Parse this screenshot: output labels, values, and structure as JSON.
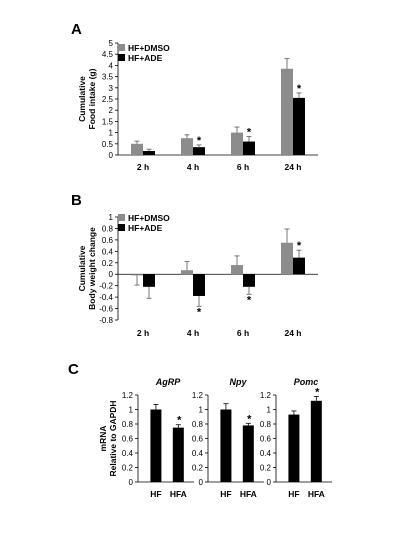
{
  "chart_data": [
    {
      "panel": "A",
      "type": "bar",
      "categories": [
        "2 h",
        "4 h",
        "6 h",
        "24 h"
      ],
      "series": [
        {
          "name": "HF+DMSO",
          "values": [
            0.5,
            0.75,
            1.0,
            3.85
          ],
          "errors": [
            0.12,
            0.15,
            0.25,
            0.45
          ],
          "sig": [
            false,
            false,
            false,
            false
          ]
        },
        {
          "name": "HF+ADE",
          "values": [
            0.18,
            0.35,
            0.6,
            2.55
          ],
          "errors": [
            0.08,
            0.1,
            0.22,
            0.22
          ],
          "sig": [
            false,
            true,
            true,
            true
          ]
        }
      ],
      "ylabel": [
        "Cumulative",
        "Food intake (g)"
      ],
      "ylim": [
        0,
        5
      ],
      "yticks": [
        "0",
        "0.5",
        "1",
        "1.5",
        "2",
        "2.5",
        "3",
        "3.5",
        "4",
        "4.5",
        "5"
      ],
      "legend": "top-left",
      "grid": false
    },
    {
      "panel": "B",
      "type": "bar",
      "categories": [
        "2 h",
        "4 h",
        "6 h",
        "24 h"
      ],
      "series": [
        {
          "name": "HF+DMSO",
          "values": [
            -0.02,
            0.07,
            0.16,
            0.55
          ],
          "errors": [
            0.17,
            0.15,
            0.16,
            0.24
          ],
          "sig": [
            false,
            false,
            false,
            false
          ]
        },
        {
          "name": "HF+ADE",
          "values": [
            -0.22,
            -0.38,
            -0.22,
            0.29
          ],
          "errors": [
            0.2,
            0.18,
            0.13,
            0.13
          ],
          "sig": [
            false,
            true,
            true,
            true
          ]
        }
      ],
      "ylabel": [
        "Cumulative",
        "Body weight change"
      ],
      "ylim": [
        -0.8,
        1
      ],
      "yticks": [
        "-0.8",
        "-0.6",
        "-0.4",
        "-0.2",
        "0",
        "0.2",
        "0.4",
        "0.6",
        "0.8",
        "1"
      ],
      "legend": "top-left",
      "grid": false
    },
    {
      "panel": "C",
      "type": "bar",
      "ylabel": [
        "mRNA",
        "Relative to GAPDH"
      ],
      "ylim": [
        0,
        1.2
      ],
      "yticks": [
        "0",
        "0.2",
        "0.4",
        "0.6",
        "0.8",
        "1",
        "1.2"
      ],
      "subplots": [
        {
          "gene": "AgRP",
          "categories": [
            "HF",
            "HFA"
          ],
          "values": [
            1.0,
            0.75
          ],
          "errors": [
            0.07,
            0.04
          ],
          "sig": [
            false,
            true
          ]
        },
        {
          "gene": "Npy",
          "categories": [
            "HF",
            "HFA"
          ],
          "values": [
            1.0,
            0.78
          ],
          "errors": [
            0.08,
            0.03
          ],
          "sig": [
            false,
            true
          ]
        },
        {
          "gene": "Pomc",
          "categories": [
            "HF",
            "HFA"
          ],
          "values": [
            0.93,
            1.12
          ],
          "errors": [
            0.05,
            0.06
          ],
          "sig": [
            false,
            true
          ]
        }
      ]
    }
  ],
  "significance_marker": "*",
  "colors": {
    "dmso": "#8c8c8c",
    "ade": "#000000"
  }
}
